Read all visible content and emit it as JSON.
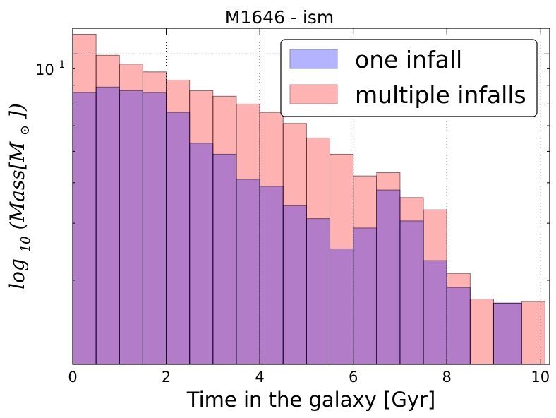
{
  "chart_data": {
    "type": "bar",
    "title": "M1646 - ism",
    "xlabel": "Time in the galaxy [Gyr]",
    "ylabel": {
      "prefix": "log",
      "subscript": "10",
      "body": "(Mass[M",
      "sun_symbol": "⊙",
      "suffix": "])"
    },
    "xlim": [
      0,
      10.2
    ],
    "ylim": [
      1.1,
      12.0
    ],
    "yscale": "log",
    "x_ticks": [
      "0",
      "2",
      "4",
      "6",
      "8",
      "10"
    ],
    "y_tick_label": {
      "base": "10",
      "exponent": "1"
    },
    "grid": true,
    "legend_position": "top-right",
    "bin_edges": [
      0.0,
      0.5,
      1.0,
      1.5,
      2.0,
      2.5,
      3.0,
      3.5,
      4.0,
      4.5,
      5.0,
      5.5,
      6.0,
      6.5,
      7.0,
      7.5,
      8.0,
      8.5,
      9.0,
      9.6,
      10.1
    ],
    "series": [
      {
        "name": "one infall",
        "color": "#0000ff",
        "alpha": 0.3,
        "values": [
          7.6,
          7.9,
          7.7,
          7.6,
          6.6,
          5.3,
          4.9,
          4.1,
          3.9,
          3.4,
          3.1,
          2.5,
          2.9,
          3.8,
          3.05,
          2.3,
          1.9,
          0,
          1.7,
          0
        ]
      },
      {
        "name": "multiple infalls",
        "color": "#ff0000",
        "alpha": 0.3,
        "values": [
          11.5,
          9.9,
          9.3,
          8.8,
          8.3,
          7.7,
          7.4,
          7.0,
          6.6,
          6.1,
          5.5,
          4.9,
          4.2,
          4.3,
          3.6,
          3.3,
          2.1,
          1.75,
          1.7,
          1.72
        ]
      }
    ]
  }
}
